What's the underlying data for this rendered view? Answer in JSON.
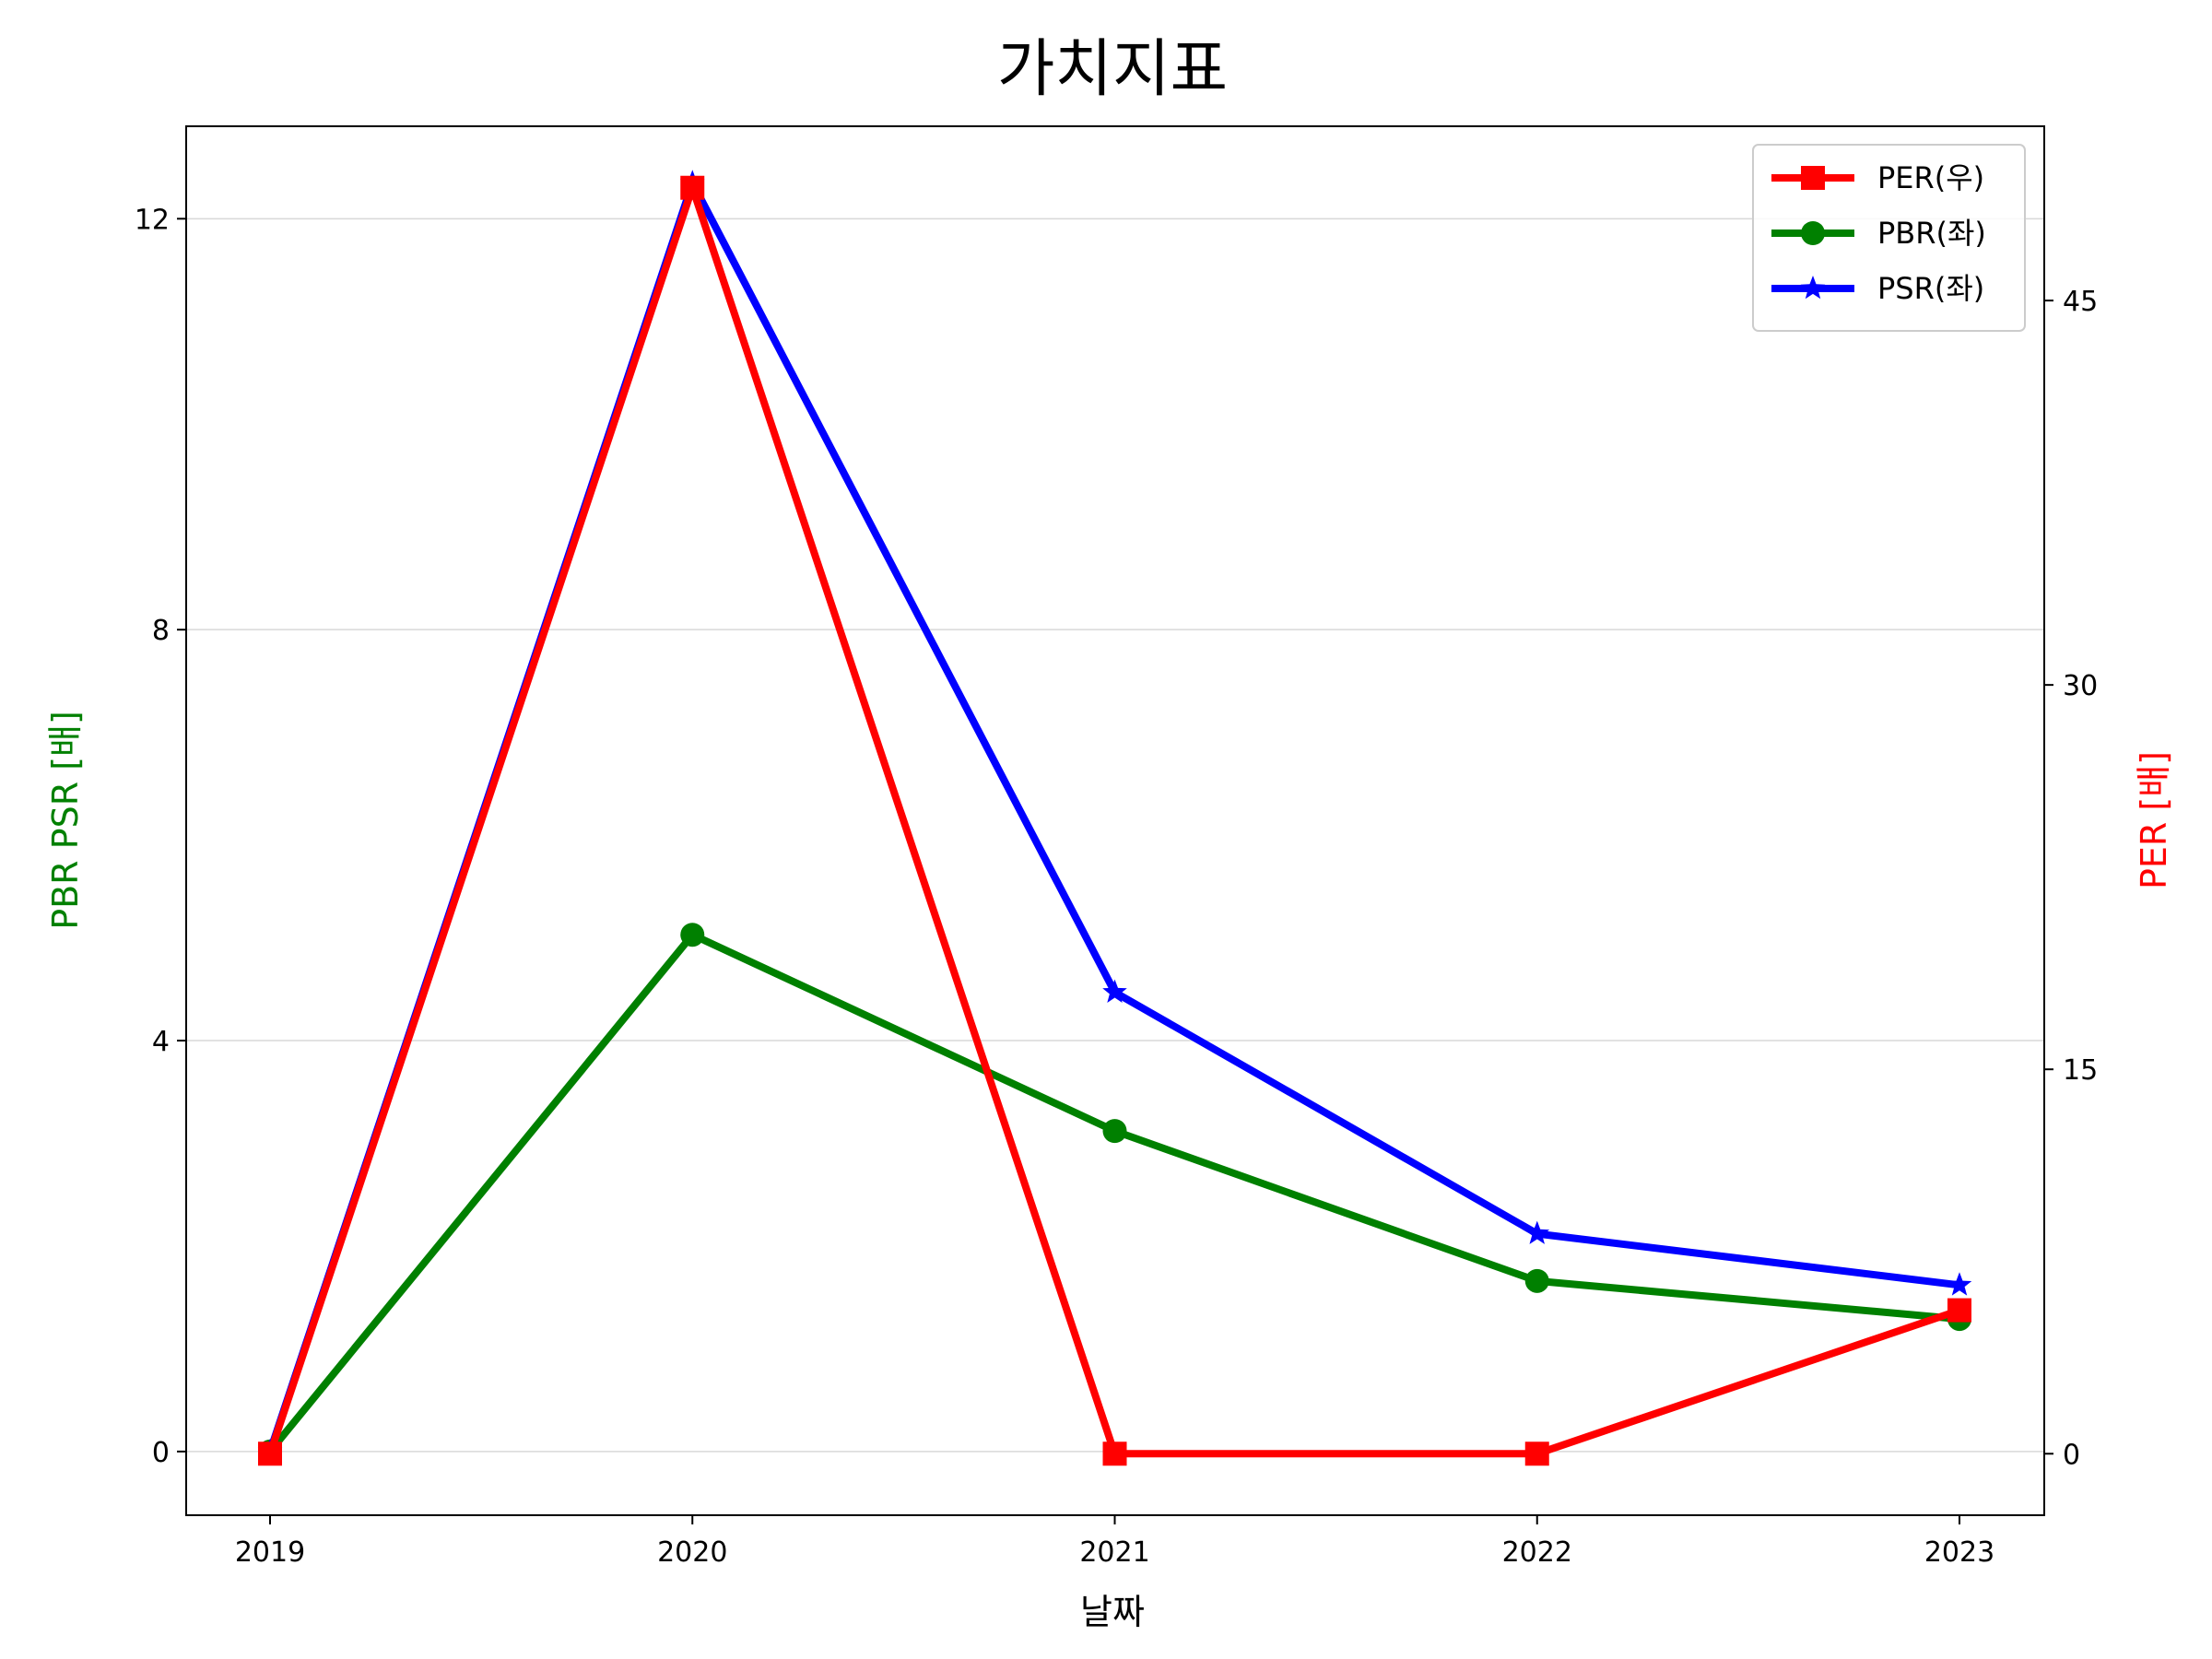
{
  "chart_data": {
    "type": "line",
    "title": "가치지표",
    "xlabel": "날짜",
    "ylabel_left": "PBR PSR [배]",
    "ylabel_right": "PER [배]",
    "categories": [
      "2019",
      "2020",
      "2021",
      "2022",
      "2023"
    ],
    "y_left": {
      "lim": [
        -0.62,
        12.9
      ],
      "ticks": [
        0,
        4,
        8,
        12
      ]
    },
    "y_right": {
      "lim": [
        -2.4,
        51.8
      ],
      "ticks": [
        0,
        15,
        30,
        45
      ]
    },
    "grid": "horizontal",
    "legend_position": "top-right",
    "series": [
      {
        "name": "PER(우)",
        "axis": "right",
        "color": "#ff0000",
        "marker": "square",
        "values": [
          0,
          49.4,
          0,
          0,
          5.6
        ]
      },
      {
        "name": "PBR(좌)",
        "axis": "left",
        "color": "#008000",
        "marker": "circle",
        "values": [
          0,
          5.03,
          3.12,
          1.66,
          1.29
        ]
      },
      {
        "name": "PSR(좌)",
        "axis": "left",
        "color": "#0000ff",
        "marker": "star",
        "values": [
          0,
          12.35,
          4.47,
          2.12,
          1.62
        ]
      }
    ],
    "colors": {
      "ylabel_left": "#008000",
      "ylabel_right": "#ff0000"
    }
  }
}
